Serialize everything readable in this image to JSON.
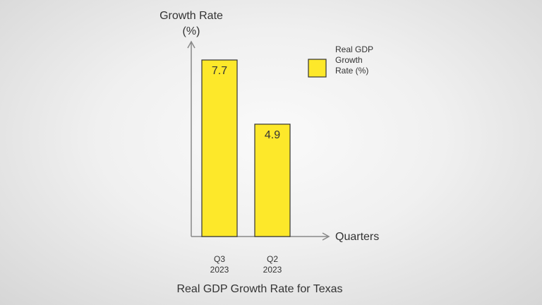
{
  "chart_data": {
    "type": "bar",
    "title": "Real GDP Growth Rate for Texas",
    "y_label": "Growth Rate (%)",
    "x_label": "Quarters",
    "categories": [
      "Q3 2023",
      "Q2 2023"
    ],
    "series": [
      {
        "name": "Real GDP Growth Rate (%)",
        "color": "#fde82a",
        "values": [
          7.7,
          4.9
        ]
      }
    ],
    "ylim": [
      0,
      8.5
    ],
    "grid": false,
    "legend": "upper right"
  }
}
